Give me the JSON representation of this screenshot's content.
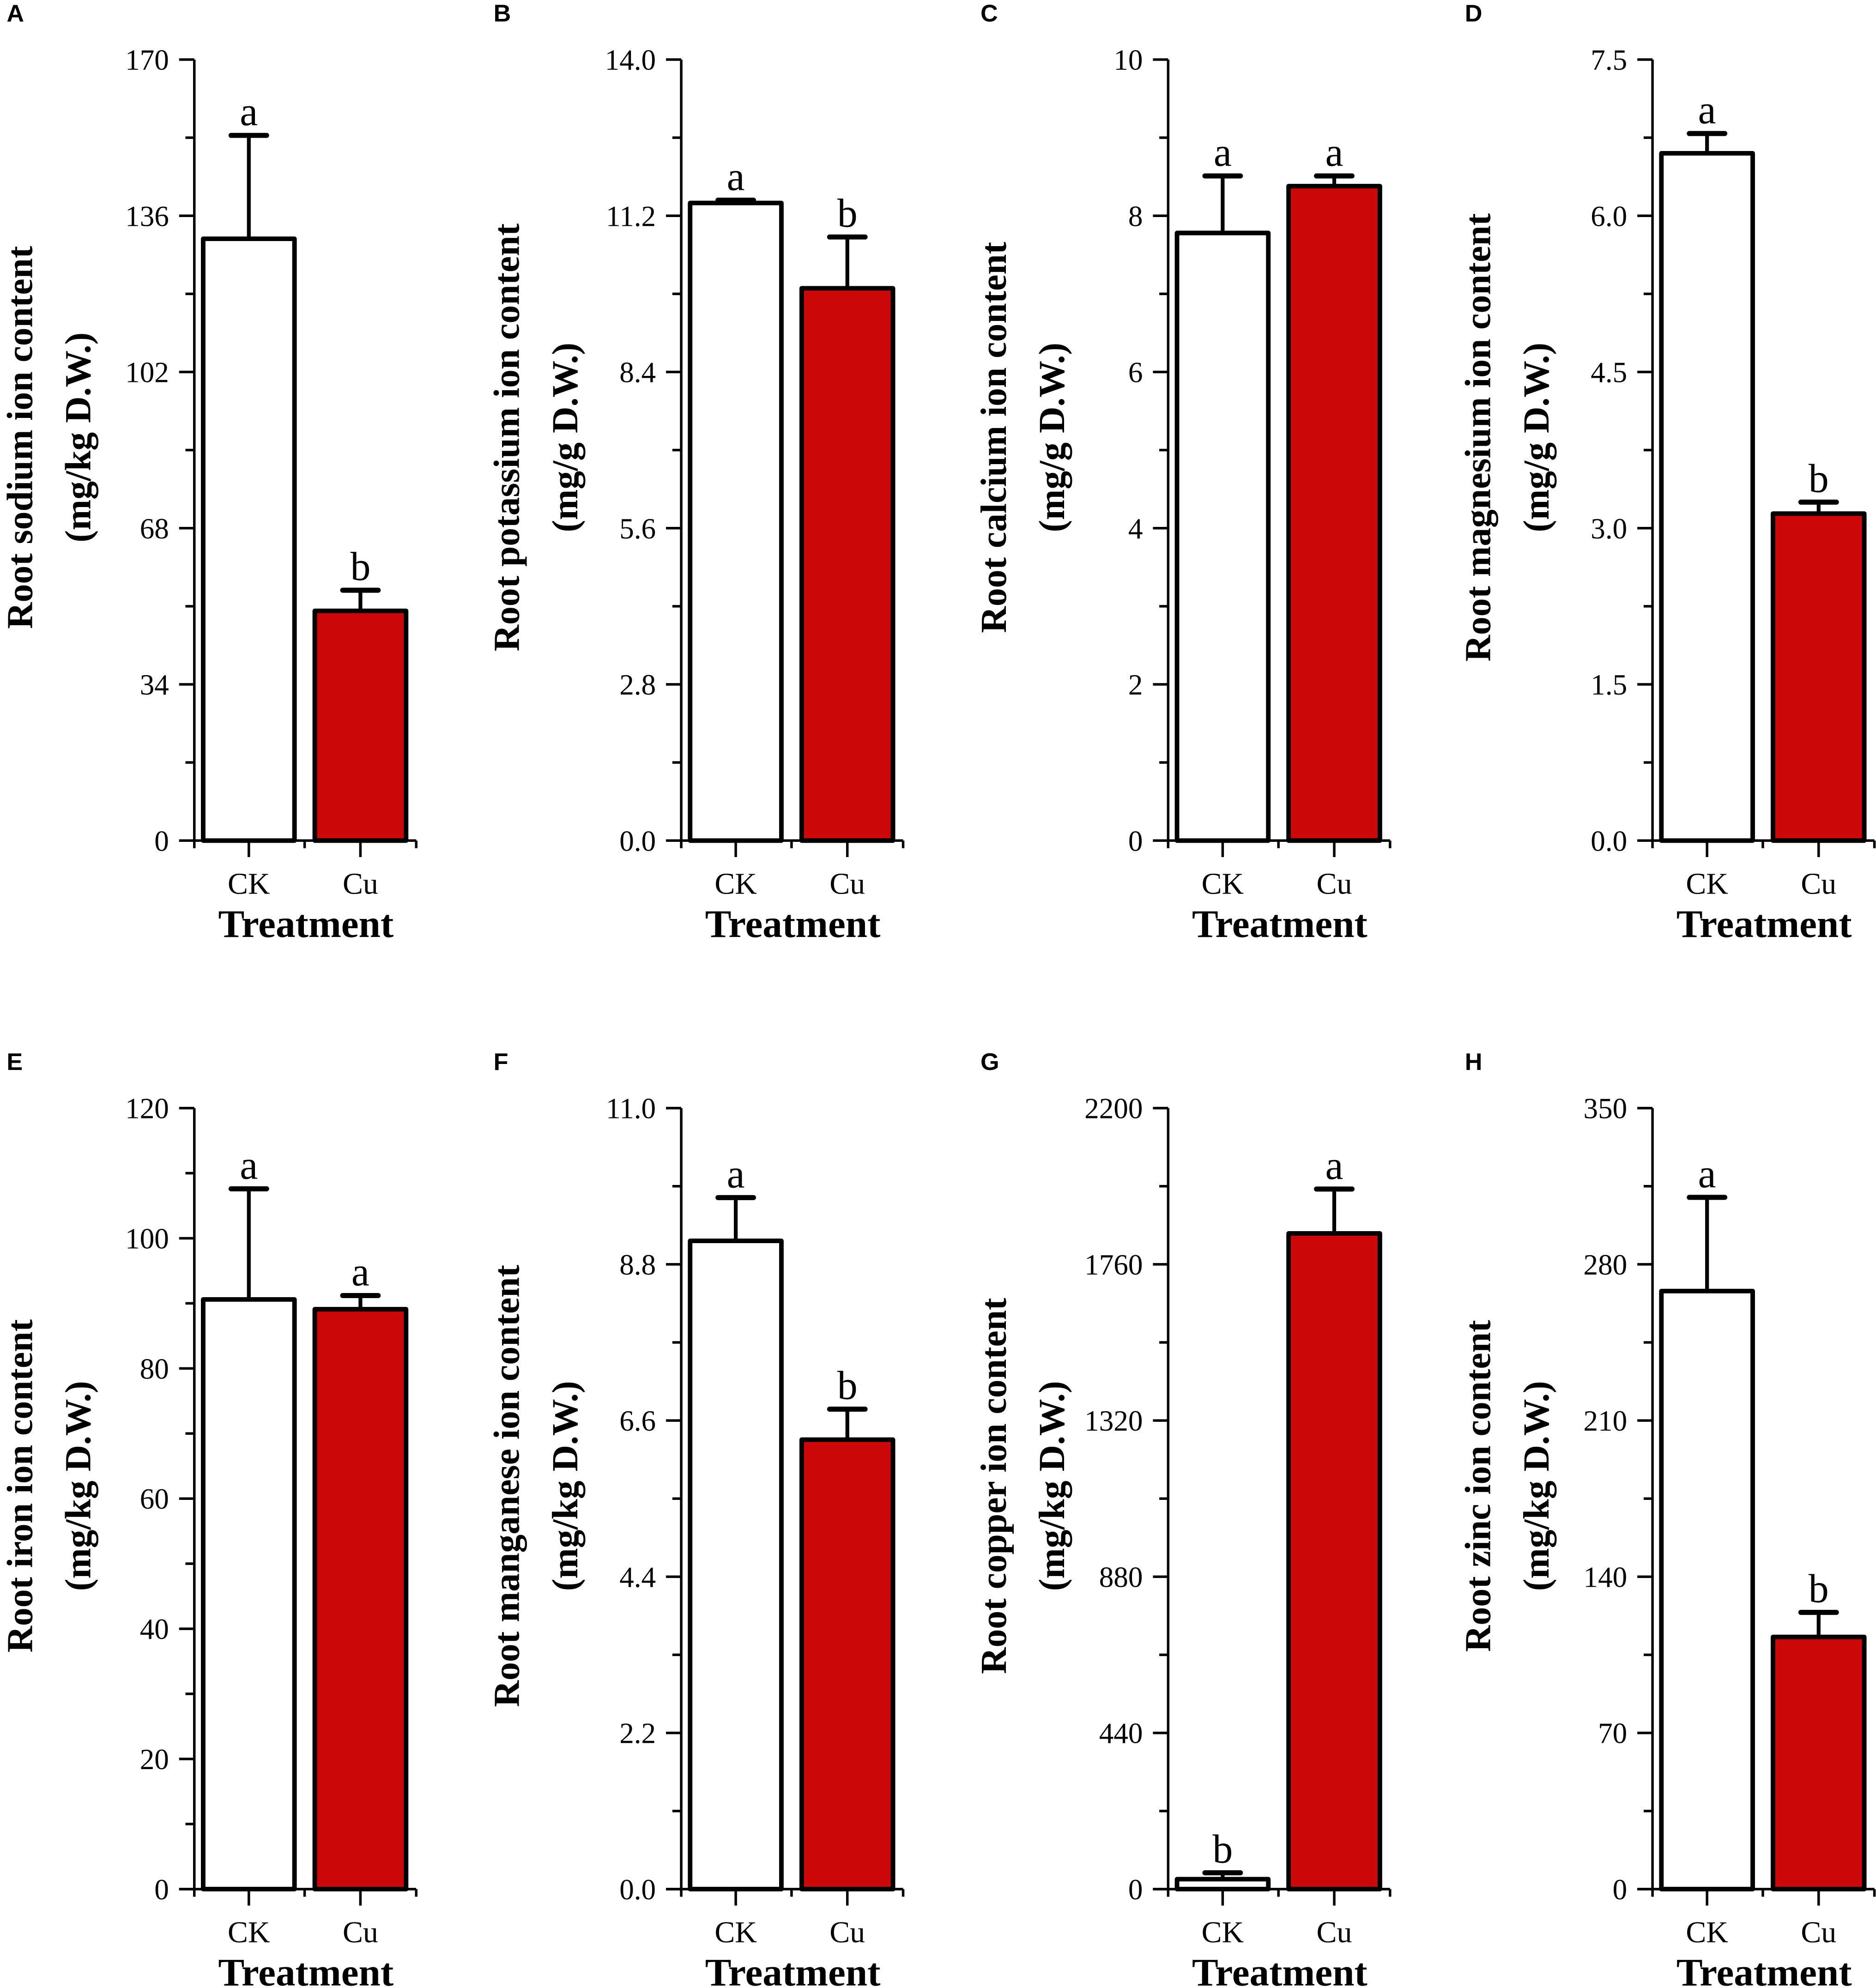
{
  "colors": {
    "ck": "#ffffff",
    "cu": "#cc0808",
    "stroke": "#000000"
  },
  "chart_data": [
    {
      "type": "bar",
      "panel": "A",
      "ylabel": [
        "Root sodium ion content",
        "(mg/kg D.W.)"
      ],
      "xlabel": "Treatment",
      "categories": [
        "CK",
        "Cu"
      ],
      "values": [
        131,
        50
      ],
      "errors": [
        22.5,
        4.5
      ],
      "significance": [
        "a",
        "b"
      ],
      "ylim": [
        0,
        170
      ],
      "yticks": [
        "0",
        "34",
        "68",
        "102",
        "136",
        "170"
      ]
    },
    {
      "type": "bar",
      "panel": "B",
      "ylabel": [
        "Root potassium ion content",
        "(mg/g D.W.)"
      ],
      "xlabel": "Treatment",
      "categories": [
        "CK",
        "Cu"
      ],
      "values": [
        11.43,
        9.9
      ],
      "errors": [
        0.05,
        0.92
      ],
      "significance": [
        "a",
        "b"
      ],
      "ylim": [
        0,
        14
      ],
      "yticks": [
        "0.0",
        "2.8",
        "5.6",
        "8.4",
        "11.2",
        "14.0"
      ]
    },
    {
      "type": "bar",
      "panel": "C",
      "ylabel": [
        "Root calcium ion content",
        "(mg/g D.W.)"
      ],
      "xlabel": "Treatment",
      "categories": [
        "CK",
        "Cu"
      ],
      "values": [
        7.78,
        8.38
      ],
      "errors": [
        0.73,
        0.13
      ],
      "significance": [
        "a",
        "a"
      ],
      "ylim": [
        0,
        10
      ],
      "yticks": [
        "0",
        "2",
        "4",
        "6",
        "8",
        "10"
      ]
    },
    {
      "type": "bar",
      "panel": "D",
      "ylabel": [
        "Root magnesium ion content",
        "(mg/g D.W.)"
      ],
      "xlabel": "Treatment",
      "categories": [
        "CK",
        "Cu"
      ],
      "values": [
        6.6,
        3.14
      ],
      "errors": [
        0.19,
        0.11
      ],
      "significance": [
        "a",
        "b"
      ],
      "ylim": [
        0,
        7.5
      ],
      "yticks": [
        "0.0",
        "1.5",
        "3.0",
        "4.5",
        "6.0",
        "7.5"
      ]
    },
    {
      "type": "bar",
      "panel": "E",
      "ylabel": [
        "Root iron ion content",
        "(mg/kg D.W.)"
      ],
      "xlabel": "Treatment",
      "categories": [
        "CK",
        "Cu"
      ],
      "values": [
        90.6,
        89.1
      ],
      "errors": [
        17,
        2.1
      ],
      "significance": [
        "a",
        "a"
      ],
      "ylim": [
        0,
        120
      ],
      "yticks": [
        "0",
        "20",
        "40",
        "60",
        "80",
        "100",
        "120"
      ]
    },
    {
      "type": "bar",
      "panel": "F",
      "ylabel": [
        "Root manganese ion content",
        "(mg/kg D.W.)"
      ],
      "xlabel": "Treatment",
      "categories": [
        "CK",
        "Cu"
      ],
      "values": [
        9.13,
        6.33
      ],
      "errors": [
        0.61,
        0.43
      ],
      "significance": [
        "a",
        "b"
      ],
      "ylim": [
        0,
        11
      ],
      "yticks": [
        "0.0",
        "2.2",
        "4.4",
        "6.6",
        "8.8",
        "11.0"
      ]
    },
    {
      "type": "bar",
      "panel": "G",
      "ylabel": [
        "Root copper ion content",
        "(mg/kg D.W.)"
      ],
      "xlabel": "Treatment",
      "categories": [
        "CK",
        "Cu"
      ],
      "values": [
        28,
        1847
      ],
      "errors": [
        18,
        125
      ],
      "significance": [
        "b",
        "a"
      ],
      "ylim": [
        0,
        2200
      ],
      "yticks": [
        "0",
        "440",
        "880",
        "1320",
        "1760",
        "2200"
      ]
    },
    {
      "type": "bar",
      "panel": "H",
      "ylabel": [
        "Root zinc ion content",
        "(mg/kg D.W.)"
      ],
      "xlabel": "Treatment",
      "categories": [
        "CK",
        "Cu"
      ],
      "values": [
        268,
        113
      ],
      "errors": [
        42,
        11
      ],
      "significance": [
        "a",
        "b"
      ],
      "ylim": [
        0,
        350
      ],
      "yticks": [
        "0",
        "70",
        "140",
        "210",
        "280",
        "350"
      ]
    }
  ]
}
